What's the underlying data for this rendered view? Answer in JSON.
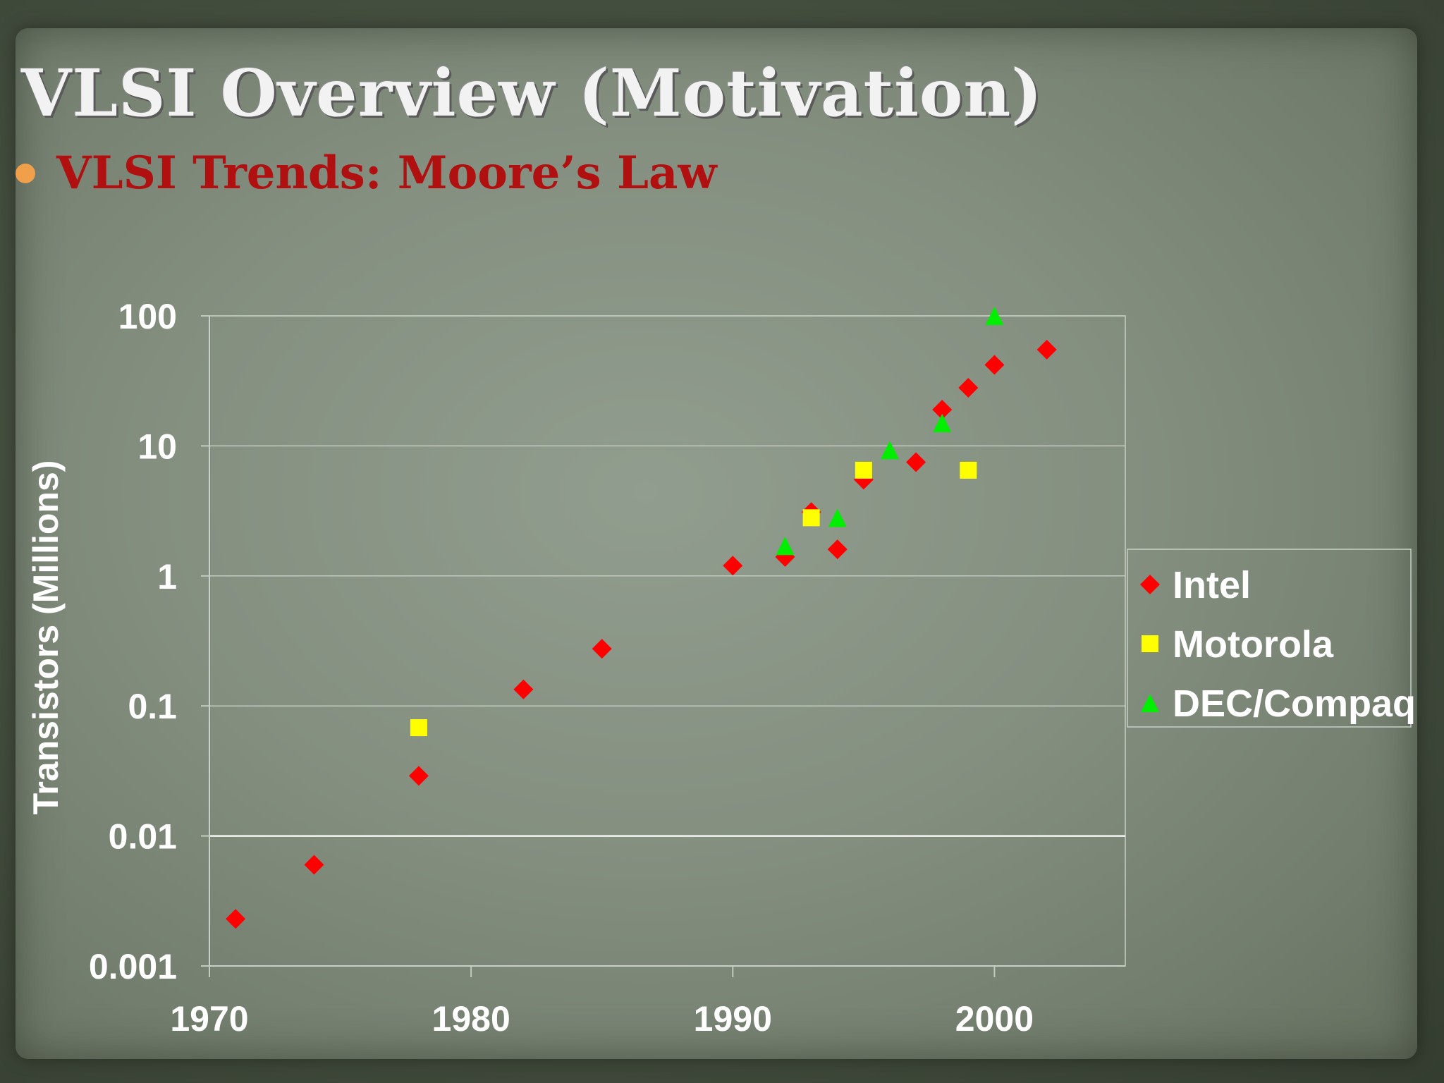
{
  "slide": {
    "title": "VLSI Overview (Motivation)",
    "bullet": "VLSI Trends: Moore’s Law"
  },
  "chart_data": {
    "type": "scatter",
    "ylabel": "Transistors (Millions)",
    "xlabel": "",
    "xlim": [
      1970,
      2005
    ],
    "ylim": [
      0.001,
      100
    ],
    "yscale": "log",
    "x_ticks": [
      1970,
      1980,
      1990,
      2000
    ],
    "x_tick_labels": [
      "1970",
      "1980",
      "1990",
      "2000"
    ],
    "y_ticks": [
      0.001,
      0.01,
      0.1,
      1,
      10,
      100
    ],
    "y_tick_labels": [
      "0.001",
      "0.01",
      "0.1",
      "1",
      "10",
      "100"
    ],
    "grid": "horizontal",
    "legend": "right",
    "series": [
      {
        "name": "Intel",
        "marker": "diamond",
        "color": "#ff0000",
        "points": [
          [
            1971,
            0.0023
          ],
          [
            1974,
            0.006
          ],
          [
            1978,
            0.029
          ],
          [
            1982,
            0.134
          ],
          [
            1985,
            0.275
          ],
          [
            1990,
            1.2
          ],
          [
            1992,
            1.4
          ],
          [
            1993,
            3.1
          ],
          [
            1994,
            1.6
          ],
          [
            1995,
            5.5
          ],
          [
            1997,
            7.5
          ],
          [
            1998,
            19
          ],
          [
            1999,
            28
          ],
          [
            2000,
            42
          ],
          [
            2002,
            55
          ]
        ]
      },
      {
        "name": "Motorola",
        "marker": "square",
        "color": "#ffff00",
        "points": [
          [
            1978,
            0.068
          ],
          [
            1993,
            2.8
          ],
          [
            1995,
            6.5
          ],
          [
            1999,
            6.5
          ]
        ]
      },
      {
        "name": "DEC/Compaq",
        "marker": "triangle",
        "color": "#00ee00",
        "points": [
          [
            1992,
            1.7
          ],
          [
            1994,
            2.8
          ],
          [
            1996,
            9.3
          ],
          [
            1998,
            15
          ],
          [
            2000,
            100
          ]
        ]
      }
    ]
  }
}
